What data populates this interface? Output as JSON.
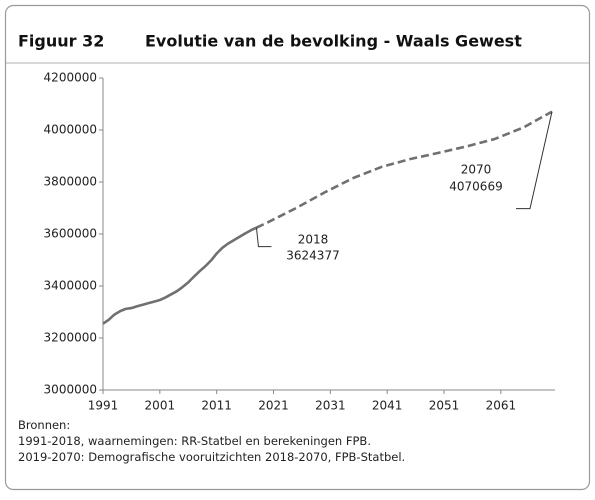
{
  "figure_label": "Figuur 32",
  "title": "Evolutie van de bevolking - Waals Gewest",
  "notes": [
    "Bronnen:",
    "1991-2018, waarnemingen: RR-Statbel en berekeningen FPB.",
    "2019-2070: Demografische vooruitzichten 2018-2070, FPB-Statbel."
  ],
  "chart_data": {
    "type": "line",
    "xlim": [
      1991,
      2070
    ],
    "xticks": [
      1991,
      2001,
      2011,
      2021,
      2031,
      2041,
      2051,
      2061
    ],
    "ylim": [
      3000000,
      4200000
    ],
    "yticks": [
      3000000,
      3200000,
      3400000,
      3600000,
      3800000,
      4000000,
      4200000
    ],
    "grid": false,
    "series": [
      {
        "color": "#707070",
        "dashed": false,
        "x": [
          1991,
          1992,
          1993,
          1994,
          1995,
          1996,
          1997,
          1998,
          1999,
          2000,
          2001,
          2002,
          2003,
          2004,
          2005,
          2006,
          2007,
          2008,
          2009,
          2010,
          2011,
          2012,
          2013,
          2014,
          2015,
          2016,
          2017,
          2018
        ],
        "values": [
          3255000,
          3270000,
          3290000,
          3303000,
          3312000,
          3315000,
          3322000,
          3328000,
          3334000,
          3340000,
          3346000,
          3356000,
          3368000,
          3380000,
          3396000,
          3414000,
          3436000,
          3457000,
          3476000,
          3498000,
          3525000,
          3547000,
          3563000,
          3576000,
          3589000,
          3602000,
          3614000,
          3624377
        ]
      },
      {
        "color": "#707070",
        "dashed": true,
        "x": [
          2018,
          2020,
          2025,
          2030,
          2035,
          2040,
          2045,
          2050,
          2055,
          2060,
          2065,
          2070
        ],
        "values": [
          3624377,
          3645000,
          3700000,
          3760000,
          3815000,
          3858000,
          3888000,
          3912000,
          3937000,
          3966000,
          4010000,
          4070669
        ]
      }
    ],
    "annotations": [
      {
        "x": 2018,
        "y": 3624377
      },
      {
        "x": 2070,
        "y": 4070669
      }
    ]
  }
}
